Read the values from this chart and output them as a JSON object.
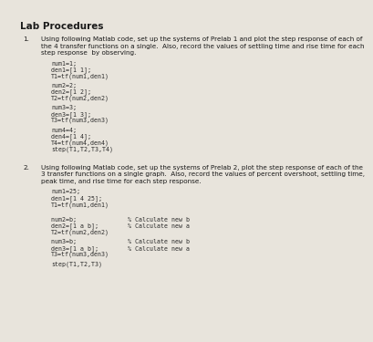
{
  "background_color": "#e8e4dc",
  "text_color": "#1a1a1a",
  "code_color": "#2a2a2a",
  "title": "Lab Procedures",
  "title_fontsize": 7.5,
  "body_fontsize": 5.2,
  "code_fontsize": 4.8,
  "items": [
    {
      "number": "1.",
      "body_lines": [
        "Using following Matlab code, set up the systems of Prelab 1 and plot the step response of each of",
        "the 4 transfer functions on a single.  Also, record the values of settling time and rise time for each",
        "step response  by observing."
      ],
      "code_blocks": [
        [
          "num1=1;",
          "den1=[1 1];",
          "T1=tf(num1,den1)"
        ],
        [
          "num2=2;",
          "den2=[1 2];",
          "T2=tf(num2,den2)"
        ],
        [
          "num3=3;",
          "den3=[1 3];",
          "T3=tf(num3,den3)"
        ],
        [
          "num4=4;",
          "den4=[1 4];",
          "T4=tf(num4,den4)",
          "step(T1,T2,T3,T4)"
        ]
      ]
    },
    {
      "number": "2.",
      "body_lines": [
        "Using following Matlab code, set up the systems of Prelab 2, plot the step response of each of the",
        "3 transfer functions on a single graph.  Also, record the values of percent overshoot, settling time,",
        "peak time, and rise time for each step response."
      ],
      "code_blocks": [
        [
          "num1=25;",
          "den1=[1 4 25];",
          "T1=tf(num1,den1)"
        ],
        [],
        [],
        [
          "num2=b;              % Calculate new b",
          "den2=[1 a b];        % Calculate new a",
          "T2=tf(num2,den2)"
        ],
        [
          "num3=b;              % Calculate new b",
          "den3=[1 a b];        % Calculate new a",
          "T3=tf(num3,den3)"
        ],
        [
          "step(T1,T2,T3)"
        ]
      ]
    }
  ]
}
